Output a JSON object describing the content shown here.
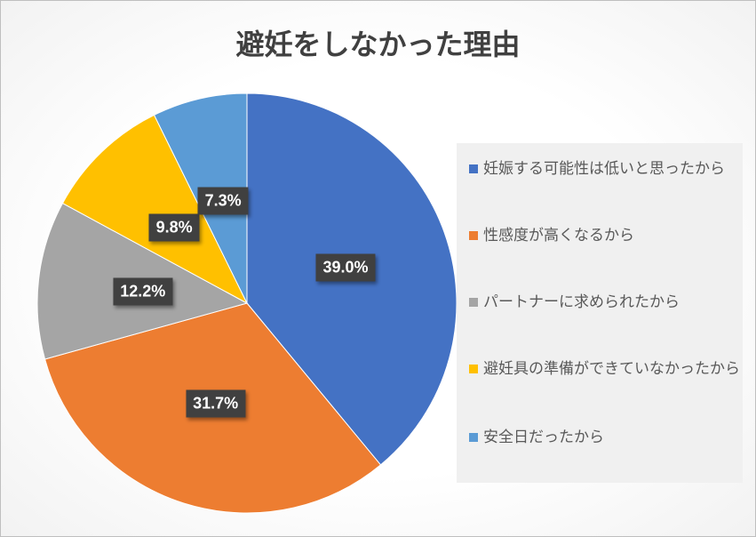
{
  "chart_data": {
    "type": "pie",
    "title": "避妊をしなかった理由",
    "categories": [
      "妊娠する可能性は低いと思ったから",
      "性感度が高くなるから",
      "パートナーに求められたから",
      "避妊具の準備ができていなかったから",
      "安全日だったから"
    ],
    "values": [
      39.0,
      31.7,
      12.2,
      9.8,
      7.3
    ],
    "labels": [
      "39.0%",
      "31.7%",
      "12.2%",
      "9.8%",
      "7.3%"
    ],
    "colors": [
      "#4472c4",
      "#ed7d31",
      "#a5a5a5",
      "#ffc000",
      "#5b9bd5"
    ],
    "start_angle": "top, clockwise",
    "legend_position": "right"
  }
}
